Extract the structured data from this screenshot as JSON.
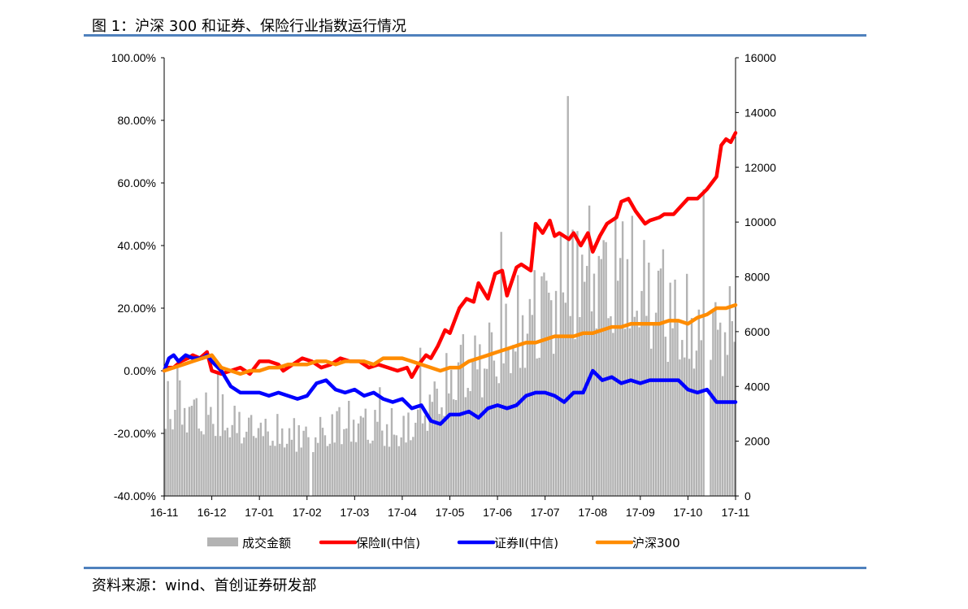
{
  "page": {
    "figure_title": "图 1：沪深 300 和证券、保险行业指数运行情况",
    "source": "资料来源：wind、首创证券研发部"
  },
  "colors": {
    "accent_rule": "#4f81bd",
    "volume": "#b3b3b3",
    "insurance": "#ff0000",
    "securities": "#0000ff",
    "hs300": "#ff8c00"
  },
  "chart_data": {
    "type": "line",
    "title": "沪深 300 和证券、保险行业指数运行情况",
    "categories": [
      "16-11",
      "16-12",
      "17-01",
      "17-02",
      "17-03",
      "17-04",
      "17-05",
      "17-06",
      "17-07",
      "17-08",
      "17-09",
      "17-10",
      "17-11"
    ],
    "y_left": {
      "min": -40,
      "max": 100,
      "step": 20,
      "tick_labels": [
        "-40.00%",
        "-20.00%",
        "0.00%",
        "20.00%",
        "40.00%",
        "60.00%",
        "80.00%",
        "100.00%"
      ]
    },
    "y_right": {
      "min": 0,
      "max": 16000,
      "step": 2000,
      "tick_labels": [
        "0",
        "2000",
        "4000",
        "6000",
        "8000",
        "10000",
        "12000",
        "14000",
        "16000"
      ]
    },
    "legend": [
      "成交金额",
      "保险Ⅱ(中信)",
      "证券Ⅱ(中信)",
      "沪深300"
    ],
    "legend_position": "bottom",
    "series": [
      {
        "name": "保险Ⅱ(中信)",
        "axis": "left",
        "x": [
          0,
          0.1,
          0.2,
          0.35,
          0.5,
          0.6,
          0.75,
          0.9,
          1.0,
          1.2,
          1.4,
          1.6,
          1.8,
          2.0,
          2.2,
          2.4,
          2.5,
          2.7,
          2.9,
          3.1,
          3.3,
          3.5,
          3.7,
          3.9,
          4.1,
          4.3,
          4.5,
          4.7,
          4.9,
          5.1,
          5.2,
          5.35,
          5.5,
          5.6,
          5.75,
          5.9,
          6.0,
          6.2,
          6.35,
          6.5,
          6.6,
          6.8,
          6.95,
          7.1,
          7.2,
          7.4,
          7.5,
          7.7,
          7.8,
          7.95,
          8.1,
          8.2,
          8.3,
          8.5,
          8.6,
          8.75,
          8.9,
          9.0,
          9.15,
          9.3,
          9.5,
          9.6,
          9.75,
          9.9,
          10.0,
          10.1,
          10.2,
          10.4,
          10.5,
          10.7,
          11.0,
          11.2,
          11.4,
          11.5,
          11.6,
          11.7,
          11.8,
          11.9,
          12.0
        ],
        "values": [
          0,
          1,
          1,
          3,
          4,
          5,
          4,
          6,
          0,
          -1,
          0,
          1,
          -1,
          3,
          3,
          2,
          0,
          2,
          4,
          3,
          1,
          2,
          4,
          3,
          3,
          1,
          2,
          1,
          0,
          1,
          -2,
          2,
          5,
          4,
          8,
          13,
          12,
          20,
          23,
          22,
          28,
          23,
          31,
          32,
          24,
          33,
          34,
          32,
          47,
          44,
          48,
          43,
          44,
          42,
          44,
          40,
          44,
          38,
          43,
          47,
          49,
          54,
          55,
          51,
          49,
          47,
          48,
          49,
          50,
          50,
          55,
          55,
          58,
          60,
          62,
          72,
          74,
          73,
          76
        ]
      },
      {
        "name": "证券Ⅱ(中信)",
        "axis": "left",
        "x": [
          0,
          0.1,
          0.2,
          0.3,
          0.45,
          0.6,
          0.8,
          0.9,
          1.0,
          1.2,
          1.4,
          1.6,
          1.8,
          2.0,
          2.2,
          2.4,
          2.6,
          2.8,
          3.0,
          3.2,
          3.4,
          3.6,
          3.8,
          4.0,
          4.2,
          4.4,
          4.6,
          4.8,
          5.0,
          5.2,
          5.4,
          5.6,
          5.8,
          6.0,
          6.2,
          6.4,
          6.6,
          6.8,
          7.0,
          7.2,
          7.4,
          7.6,
          7.8,
          8.0,
          8.2,
          8.4,
          8.6,
          8.8,
          9.0,
          9.2,
          9.4,
          9.6,
          9.8,
          10.0,
          10.2,
          10.4,
          10.6,
          10.8,
          11.0,
          11.2,
          11.4,
          11.6,
          11.8,
          12.0
        ],
        "values": [
          0,
          4,
          5,
          3,
          5,
          4,
          4,
          5,
          3,
          0,
          -5,
          -7,
          -7,
          -7,
          -8,
          -7,
          -8,
          -9,
          -8,
          -4,
          -3,
          -6,
          -7,
          -6,
          -8,
          -7,
          -9,
          -10,
          -9,
          -12,
          -11,
          -16,
          -17,
          -14,
          -14,
          -13,
          -15,
          -12,
          -11,
          -12,
          -11,
          -8,
          -7,
          -7,
          -8,
          -10,
          -7,
          -7,
          0,
          -3,
          -2,
          -4,
          -3,
          -4,
          -3,
          -3,
          -3,
          -3,
          -6,
          -7,
          -6,
          -10,
          -10,
          -10
        ]
      },
      {
        "name": "沪深300",
        "axis": "left",
        "x": [
          0,
          0.2,
          0.4,
          0.6,
          0.8,
          1.0,
          1.2,
          1.4,
          1.6,
          1.8,
          2.0,
          2.2,
          2.4,
          2.6,
          2.8,
          3.0,
          3.2,
          3.4,
          3.6,
          3.8,
          4.0,
          4.2,
          4.4,
          4.6,
          4.8,
          5.0,
          5.2,
          5.4,
          5.6,
          5.8,
          6.0,
          6.2,
          6.4,
          6.6,
          6.8,
          7.0,
          7.2,
          7.4,
          7.6,
          7.8,
          8.0,
          8.2,
          8.4,
          8.6,
          8.8,
          9.0,
          9.2,
          9.4,
          9.6,
          9.8,
          10.0,
          10.2,
          10.4,
          10.6,
          10.8,
          11.0,
          11.2,
          11.4,
          11.6,
          11.8,
          12.0
        ],
        "values": [
          0,
          1,
          2,
          3,
          4,
          5,
          1,
          0,
          -1,
          0,
          0,
          1,
          1,
          2,
          2,
          2,
          3,
          3,
          2,
          3,
          3,
          3,
          2,
          4,
          4,
          4,
          3,
          2,
          1,
          0,
          1,
          1,
          3,
          4,
          5,
          6,
          7,
          8,
          9,
          9,
          10,
          11,
          11,
          11,
          12,
          12,
          13,
          14,
          14,
          15,
          15,
          15,
          15,
          16,
          16,
          15,
          17,
          18,
          20,
          20,
          21
        ]
      },
      {
        "name": "成交金额",
        "axis": "right",
        "type": "bar",
        "monthly_levels": [
          3500,
          3000,
          2400,
          2200,
          2800,
          2400,
          4300,
          5600,
          7200,
          8600,
          7800,
          6200,
          6200,
          6500
        ],
        "peak": 14600
      }
    ]
  }
}
